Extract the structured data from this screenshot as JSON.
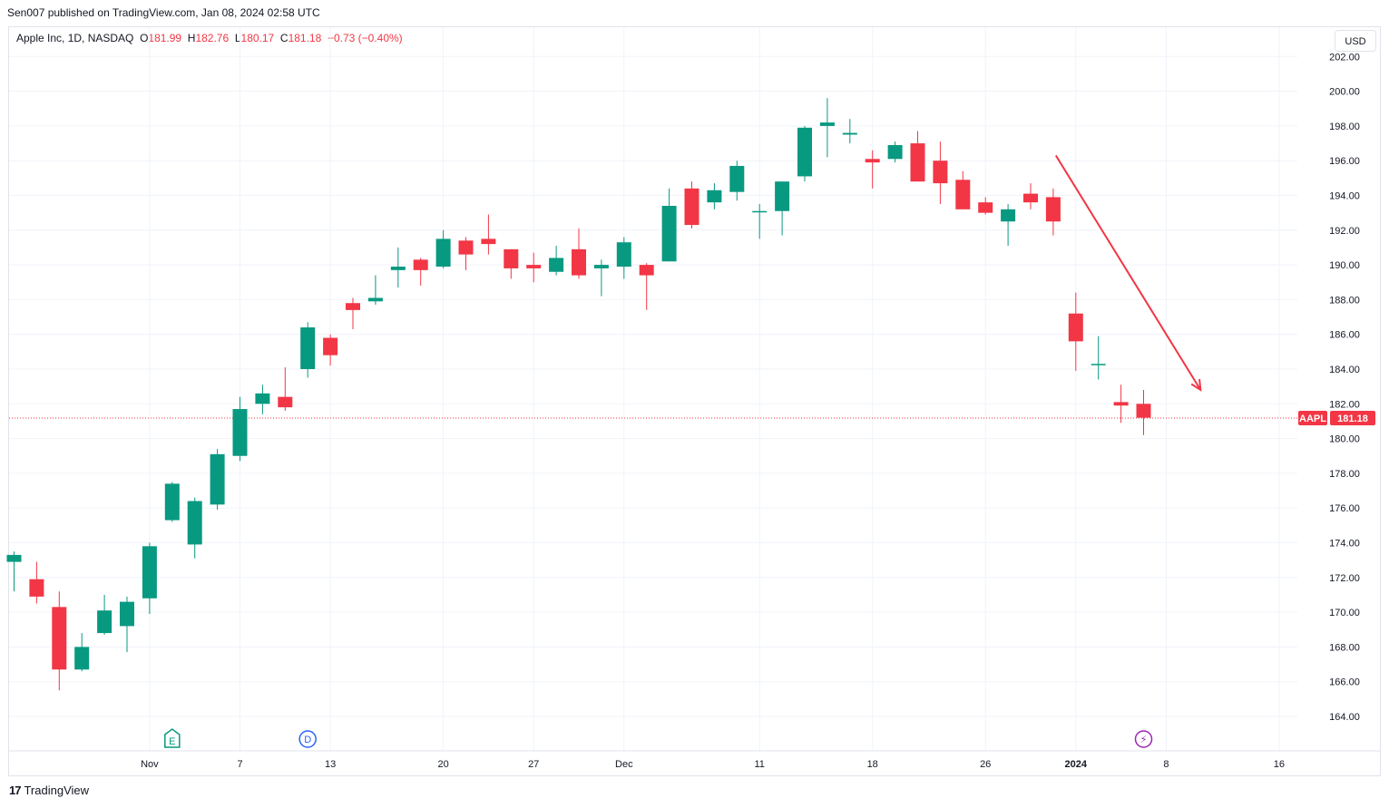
{
  "header": {
    "published": "Sen007 published on TradingView.com, Jan 08, 2024 02:58 UTC"
  },
  "legend": {
    "symbol": "Apple Inc, 1D, NASDAQ",
    "o_label": "O",
    "o_value": "181.99",
    "h_label": "H",
    "h_value": "182.76",
    "l_label": "L",
    "l_value": "180.17",
    "c_label": "C",
    "c_value": "181.18",
    "change": "−0.73 (−0.40%)"
  },
  "currency_button": "USD",
  "footer": {
    "brand": "TradingView",
    "logo": "17"
  },
  "price_tag": {
    "symbol": "AAPL",
    "value": "181.18"
  },
  "markers": [
    {
      "label": "E",
      "icon": "earnings-icon",
      "date_index": 7
    },
    {
      "label": "D",
      "icon": "dividend-icon",
      "date_index": 13
    },
    {
      "label": "⚡",
      "icon": "split-lightning-icon",
      "date_index": 50
    }
  ],
  "colors": {
    "up": "#089981",
    "down": "#f23645",
    "grid": "#f0f3fa",
    "arrow": "#f23645"
  },
  "chart_data": {
    "type": "candlestick",
    "ylim": [
      162,
      202
    ],
    "y_ticks": [
      164,
      166,
      168,
      170,
      172,
      174,
      176,
      178,
      180,
      182,
      184,
      186,
      188,
      190,
      192,
      194,
      196,
      198,
      200,
      202
    ],
    "y_tick_labels": [
      "164.00",
      "166.00",
      "168.00",
      "170.00",
      "172.00",
      "174.00",
      "176.00",
      "178.00",
      "180.00",
      "182.00",
      "184.00",
      "186.00",
      "188.00",
      "190.00",
      "192.00",
      "194.00",
      "196.00",
      "198.00",
      "200.00",
      "202.00"
    ],
    "x_labels": [
      {
        "text": "Nov",
        "slot": 6
      },
      {
        "text": "7",
        "slot": 10
      },
      {
        "text": "13",
        "slot": 14
      },
      {
        "text": "20",
        "slot": 19
      },
      {
        "text": "27",
        "slot": 23
      },
      {
        "text": "Dec",
        "slot": 27
      },
      {
        "text": "11",
        "slot": 33
      },
      {
        "text": "18",
        "slot": 38
      },
      {
        "text": "26",
        "slot": 43
      },
      {
        "text": "2024",
        "slot": 47
      },
      {
        "text": "8",
        "slot": 51
      },
      {
        "text": "16",
        "slot": 56
      }
    ],
    "last_close": 181.18,
    "candles": [
      {
        "o": 172.9,
        "h": 173.5,
        "l": 171.2,
        "c": 173.3
      },
      {
        "o": 171.9,
        "h": 172.9,
        "l": 170.5,
        "c": 170.9
      },
      {
        "o": 170.3,
        "h": 171.2,
        "l": 165.5,
        "c": 166.7
      },
      {
        "o": 166.7,
        "h": 168.8,
        "l": 166.6,
        "c": 168.0
      },
      {
        "o": 168.8,
        "h": 171.0,
        "l": 168.7,
        "c": 170.1
      },
      {
        "o": 169.2,
        "h": 170.9,
        "l": 167.7,
        "c": 170.6
      },
      {
        "o": 170.8,
        "h": 174.0,
        "l": 169.9,
        "c": 173.8
      },
      {
        "o": 175.3,
        "h": 177.5,
        "l": 175.2,
        "c": 177.4
      },
      {
        "o": 173.9,
        "h": 176.6,
        "l": 173.1,
        "c": 176.4
      },
      {
        "o": 176.2,
        "h": 179.4,
        "l": 175.9,
        "c": 179.1
      },
      {
        "o": 179.0,
        "h": 182.4,
        "l": 178.7,
        "c": 181.7
      },
      {
        "o": 182.0,
        "h": 183.1,
        "l": 181.4,
        "c": 182.6
      },
      {
        "o": 182.4,
        "h": 184.1,
        "l": 181.6,
        "c": 181.8
      },
      {
        "o": 184.0,
        "h": 186.7,
        "l": 183.5,
        "c": 186.4
      },
      {
        "o": 185.8,
        "h": 186.0,
        "l": 184.2,
        "c": 184.8
      },
      {
        "o": 187.8,
        "h": 188.1,
        "l": 186.3,
        "c": 187.4
      },
      {
        "o": 187.9,
        "h": 189.4,
        "l": 187.7,
        "c": 188.1
      },
      {
        "o": 189.7,
        "h": 191.0,
        "l": 188.7,
        "c": 189.9
      },
      {
        "o": 190.3,
        "h": 190.4,
        "l": 188.8,
        "c": 189.7
      },
      {
        "o": 189.9,
        "h": 192.0,
        "l": 189.8,
        "c": 191.5
      },
      {
        "o": 191.4,
        "h": 191.6,
        "l": 189.7,
        "c": 190.6
      },
      {
        "o": 191.5,
        "h": 192.9,
        "l": 190.6,
        "c": 191.2
      },
      {
        "o": 190.9,
        "h": 190.9,
        "l": 189.2,
        "c": 189.8
      },
      {
        "o": 190.0,
        "h": 190.7,
        "l": 189.0,
        "c": 189.8
      },
      {
        "o": 189.6,
        "h": 191.1,
        "l": 189.4,
        "c": 190.4
      },
      {
        "o": 190.9,
        "h": 192.1,
        "l": 189.2,
        "c": 189.4
      },
      {
        "o": 189.8,
        "h": 190.3,
        "l": 188.2,
        "c": 190.0
      },
      {
        "o": 189.9,
        "h": 191.6,
        "l": 189.2,
        "c": 191.3
      },
      {
        "o": 190.0,
        "h": 190.1,
        "l": 187.4,
        "c": 189.4
      },
      {
        "o": 190.2,
        "h": 194.4,
        "l": 190.2,
        "c": 193.4
      },
      {
        "o": 194.4,
        "h": 194.8,
        "l": 192.1,
        "c": 192.3
      },
      {
        "o": 193.6,
        "h": 194.7,
        "l": 193.2,
        "c": 194.3
      },
      {
        "o": 194.2,
        "h": 196.0,
        "l": 193.7,
        "c": 195.7
      },
      {
        "o": 193.1,
        "h": 193.5,
        "l": 191.5,
        "c": 193.1
      },
      {
        "o": 193.1,
        "h": 194.8,
        "l": 191.7,
        "c": 194.8
      },
      {
        "o": 195.1,
        "h": 198.0,
        "l": 194.8,
        "c": 197.9
      },
      {
        "o": 198.0,
        "h": 199.6,
        "l": 196.2,
        "c": 198.2
      },
      {
        "o": 197.5,
        "h": 198.4,
        "l": 197.0,
        "c": 197.6
      },
      {
        "o": 196.1,
        "h": 196.6,
        "l": 194.4,
        "c": 195.9
      },
      {
        "o": 196.1,
        "h": 197.1,
        "l": 195.9,
        "c": 196.9
      },
      {
        "o": 197.0,
        "h": 197.7,
        "l": 194.8,
        "c": 194.8
      },
      {
        "o": 196.0,
        "h": 197.1,
        "l": 193.5,
        "c": 194.7
      },
      {
        "o": 194.9,
        "h": 195.4,
        "l": 193.3,
        "c": 193.2
      },
      {
        "o": 193.6,
        "h": 193.9,
        "l": 192.9,
        "c": 193.0
      },
      {
        "o": 192.5,
        "h": 193.5,
        "l": 191.1,
        "c": 193.2
      },
      {
        "o": 194.1,
        "h": 194.7,
        "l": 193.2,
        "c": 193.6
      },
      {
        "o": 193.9,
        "h": 194.4,
        "l": 191.7,
        "c": 192.5
      },
      {
        "o": 187.2,
        "h": 188.4,
        "l": 183.9,
        "c": 185.6
      },
      {
        "o": 184.3,
        "h": 185.9,
        "l": 183.4,
        "c": 184.3
      },
      {
        "o": 182.1,
        "h": 183.1,
        "l": 180.9,
        "c": 181.9
      },
      {
        "o": 182.0,
        "h": 182.8,
        "l": 180.2,
        "c": 181.2
      }
    ],
    "annotations": [
      {
        "type": "arrow",
        "from": {
          "slot": 47,
          "price": 196.3
        },
        "to": {
          "slot": 52,
          "price": 182.8
        }
      }
    ]
  }
}
